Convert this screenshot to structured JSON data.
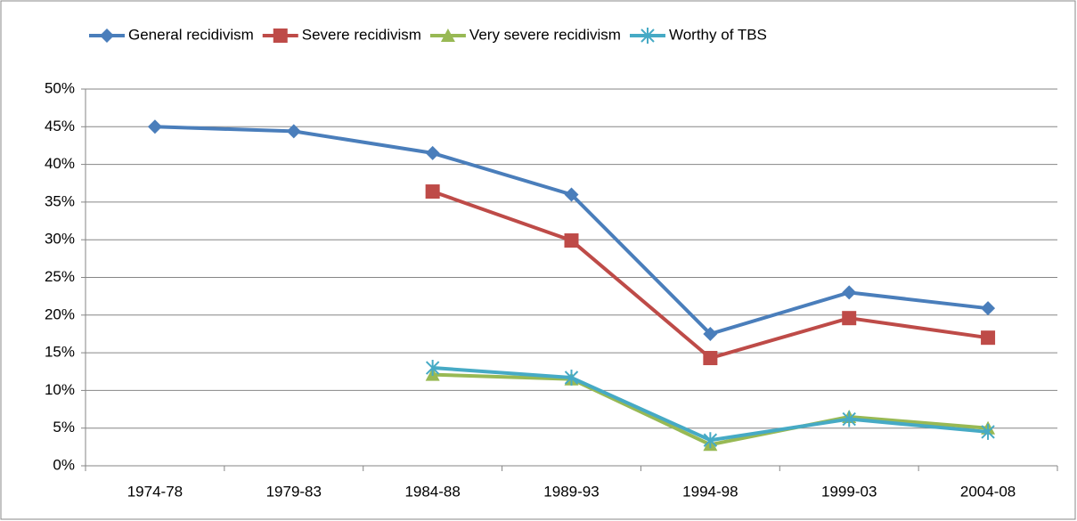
{
  "chart_data": {
    "type": "line",
    "categories": [
      "1974-78",
      "1979-83",
      "1984-88",
      "1989-93",
      "1994-98",
      "1999-03",
      "2004-08"
    ],
    "series": [
      {
        "name": "General recidivism",
        "color": "#4a7ebb",
        "marker": "diamond",
        "values": [
          45,
          44.4,
          41.5,
          36,
          17.5,
          23,
          20.9
        ]
      },
      {
        "name": "Severe recidivism",
        "color": "#be4b48",
        "marker": "square",
        "values": [
          null,
          null,
          36.4,
          29.9,
          14.3,
          19.6,
          17
        ]
      },
      {
        "name": "Very severe recidivism",
        "color": "#98b954",
        "marker": "triangle",
        "values": [
          null,
          null,
          12.1,
          11.5,
          2.8,
          6.5,
          5
        ]
      },
      {
        "name": "Worthy of TBS",
        "color": "#46aac5",
        "marker": "star",
        "values": [
          null,
          null,
          13,
          11.7,
          3.4,
          6.2,
          4.5
        ]
      }
    ],
    "ylim": [
      0,
      50
    ],
    "yticks": [
      {
        "value": 0,
        "label": "0%"
      },
      {
        "value": 5,
        "label": "5%"
      },
      {
        "value": 10,
        "label": "10%"
      },
      {
        "value": 15,
        "label": "15%"
      },
      {
        "value": 20,
        "label": "20%"
      },
      {
        "value": 25,
        "label": "25%"
      },
      {
        "value": 30,
        "label": "30%"
      },
      {
        "value": 35,
        "label": "35%"
      },
      {
        "value": 40,
        "label": "40%"
      },
      {
        "value": 45,
        "label": "45%"
      },
      {
        "value": 50,
        "label": "50%"
      }
    ],
    "grid": true,
    "legend": "top"
  }
}
